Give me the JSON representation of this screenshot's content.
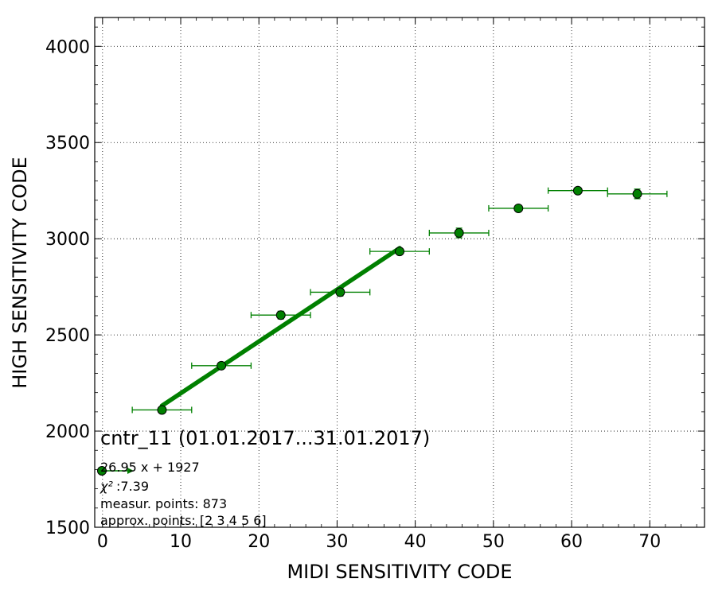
{
  "chart_data": {
    "type": "scatter",
    "title": "cntr_11 (01.01.2017...31.01.2017)",
    "xlabel": "MIDI SENSITIVITY CODE",
    "ylabel": "HIGH SENSITIVITY CODE",
    "xlim": [
      -1,
      77
    ],
    "ylim": [
      1500,
      4150
    ],
    "xticks": [
      0,
      10,
      20,
      30,
      40,
      50,
      60,
      70
    ],
    "yticks": [
      1500,
      2000,
      2500,
      3000,
      3500,
      4000
    ],
    "grid": true,
    "colors": {
      "points": "#008000",
      "fit": "#008000",
      "marker_edge": "#000000"
    },
    "points": [
      {
        "x": 7.6,
        "y": 2110,
        "xerr": 3.8,
        "yerr": 10
      },
      {
        "x": 15.2,
        "y": 2340,
        "xerr": 3.8,
        "yerr": 12
      },
      {
        "x": 22.8,
        "y": 2603,
        "xerr": 3.8,
        "yerr": 20
      },
      {
        "x": 30.4,
        "y": 2722,
        "xerr": 3.8,
        "yerr": 20
      },
      {
        "x": 38.0,
        "y": 2934,
        "xerr": 3.8,
        "yerr": 15
      },
      {
        "x": 45.6,
        "y": 3030,
        "xerr": 3.8,
        "yerr": 25
      },
      {
        "x": 53.2,
        "y": 3158,
        "xerr": 3.8,
        "yerr": 15
      },
      {
        "x": 60.8,
        "y": 3250,
        "xerr": 3.8,
        "yerr": 15
      },
      {
        "x": 68.4,
        "y": 3233,
        "xerr": 3.8,
        "yerr": 25
      }
    ],
    "fit": {
      "slope": 26.95,
      "intercept": 1927,
      "x_range": [
        7.6,
        38.0
      ]
    },
    "info": {
      "equation": "26.95 x + 1927",
      "chi2_label": "χ²",
      "chi2_value": " :7.39",
      "measur_points": "measur. points: 873",
      "approx_points": "approx. points: [2 3 4 5 6]"
    }
  }
}
